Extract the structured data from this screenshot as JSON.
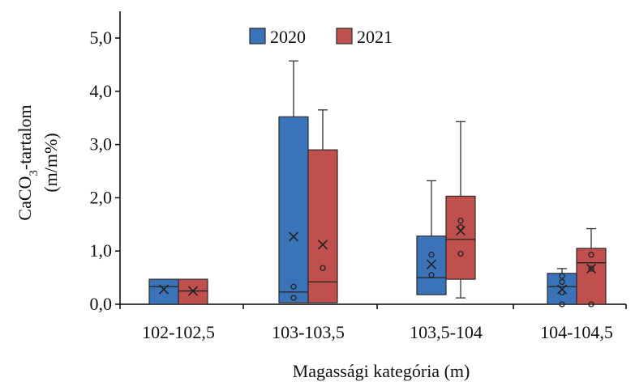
{
  "chart_data": {
    "type": "box",
    "ylabel_line1": "CaCO",
    "ylabel_sub": "3",
    "ylabel_line1_suffix": "-tartalom",
    "ylabel_line2": "(m/m%)",
    "xlabel": "Magassági  kategória (m)",
    "ylim": [
      0,
      5
    ],
    "yticks": [
      0,
      1,
      2,
      3,
      4,
      5
    ],
    "ytick_labels": [
      "0,0",
      "1,0",
      "2,0",
      "3,0",
      "4,0",
      "5,0"
    ],
    "categories": [
      "102-102,5",
      "103-103,5",
      "103,5-104",
      "104-104,5"
    ],
    "legend_position": "top-center",
    "series": [
      {
        "name": "2020",
        "color": "#3b73b9",
        "boxes": [
          {
            "min": 0.0,
            "q1": 0.0,
            "median": 0.33,
            "q3": 0.47,
            "max": 0.47,
            "mean": 0.28,
            "points": []
          },
          {
            "min": 0.03,
            "q1": 0.03,
            "median": 0.23,
            "q3": 3.52,
            "max": 4.57,
            "mean": 1.27,
            "points": [
              0.12,
              0.33
            ]
          },
          {
            "min": 0.18,
            "q1": 0.18,
            "median": 0.5,
            "q3": 1.28,
            "max": 2.32,
            "mean": 0.75,
            "points": [
              0.55,
              0.93
            ]
          },
          {
            "min": 0.0,
            "q1": 0.0,
            "median": 0.33,
            "q3": 0.58,
            "max": 0.67,
            "mean": 0.28,
            "points": [
              0.0,
              0.22,
              0.42,
              0.53
            ]
          }
        ]
      },
      {
        "name": "2021",
        "color": "#c0504d",
        "boxes": [
          {
            "min": 0.0,
            "q1": 0.0,
            "median": 0.25,
            "q3": 0.47,
            "max": 0.47,
            "mean": 0.25,
            "points": []
          },
          {
            "min": 0.03,
            "q1": 0.03,
            "median": 0.42,
            "q3": 2.9,
            "max": 3.65,
            "mean": 1.12,
            "points": [
              0.68
            ]
          },
          {
            "min": 0.12,
            "q1": 0.47,
            "median": 1.22,
            "q3": 2.03,
            "max": 3.43,
            "mean": 1.38,
            "points": [
              0.95,
              1.45,
              1.57
            ]
          },
          {
            "min": 0.0,
            "q1": 0.0,
            "median": 0.78,
            "q3": 1.05,
            "max": 1.42,
            "mean": 0.67,
            "points": [
              0.0,
              0.67,
              0.93
            ]
          }
        ]
      }
    ]
  }
}
